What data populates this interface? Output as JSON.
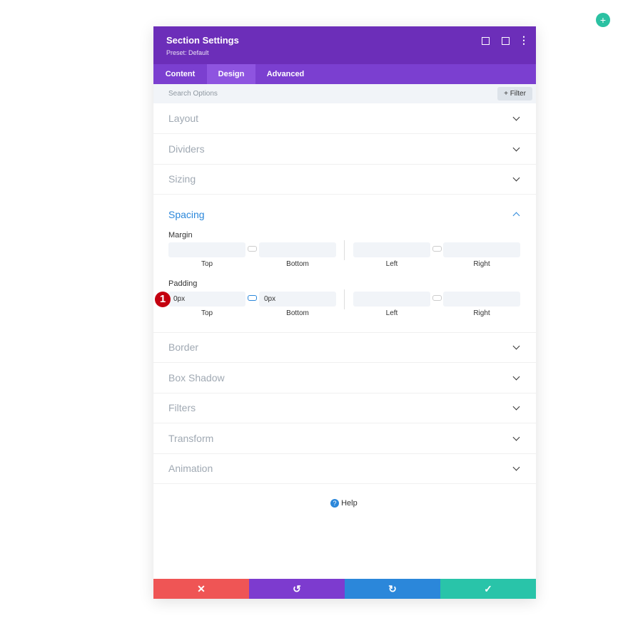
{
  "header": {
    "title": "Section Settings",
    "preset": "Preset: Default"
  },
  "tabs": [
    "Content",
    "Design",
    "Advanced"
  ],
  "search": {
    "placeholder": "Search Options",
    "filter": "Filter"
  },
  "sections_top": [
    "Layout",
    "Dividers",
    "Sizing"
  ],
  "spacing": {
    "title": "Spacing",
    "margin": {
      "label": "Margin",
      "fields": [
        "Top",
        "Bottom",
        "Left",
        "Right"
      ]
    },
    "padding": {
      "label": "Padding",
      "fields": [
        "Top",
        "Bottom",
        "Left",
        "Right"
      ],
      "values": [
        "0px",
        "0px"
      ],
      "badge": "1"
    }
  },
  "sections_bottom": [
    "Border",
    "Box Shadow",
    "Filters",
    "Transform",
    "Animation"
  ],
  "help": "Help"
}
